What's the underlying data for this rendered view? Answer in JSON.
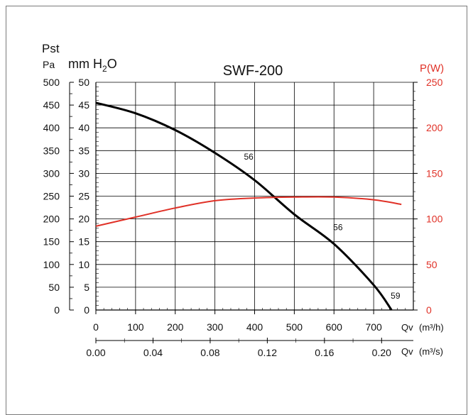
{
  "chart_data": {
    "type": "line",
    "title": "SWF-200",
    "left_axis": {
      "label_top": "Pst",
      "unit_pa": "Pa",
      "unit_mm_prefix": "mm H",
      "unit_mm_sub": "2",
      "unit_mm_suffix": "O",
      "pa_ticks": [
        0,
        50,
        100,
        150,
        200,
        250,
        300,
        350,
        400,
        450,
        500
      ],
      "mm_ticks": [
        0,
        5,
        10,
        15,
        20,
        25,
        30,
        35,
        40,
        45,
        50
      ],
      "ylim": [
        0,
        500
      ]
    },
    "right_axis": {
      "label": "P(W)",
      "ticks": [
        0,
        50,
        100,
        150,
        200,
        250
      ],
      "ylim": [
        0,
        250
      ]
    },
    "x_axis_primary": {
      "label_q": "Qv",
      "unit": "(m³/h)",
      "ticks": [
        0,
        100,
        200,
        300,
        400,
        500,
        600,
        700
      ],
      "xlim": [
        0,
        800
      ]
    },
    "x_axis_secondary": {
      "label_q": "Qv",
      "unit": "(m³/s)",
      "ticks": [
        "0.00",
        "0.04",
        "0.08",
        "0.12",
        "0.16",
        "0.20"
      ]
    },
    "grid": true,
    "series": [
      {
        "axis": "left",
        "color": "#000000",
        "points": [
          [
            0,
            455
          ],
          [
            100,
            432
          ],
          [
            200,
            395
          ],
          [
            300,
            345
          ],
          [
            400,
            285
          ],
          [
            500,
            210
          ],
          [
            600,
            145
          ],
          [
            700,
            55
          ],
          [
            745,
            0
          ]
        ]
      },
      {
        "axis": "right",
        "color": "#e03127",
        "points": [
          [
            0,
            92
          ],
          [
            100,
            102
          ],
          [
            200,
            112
          ],
          [
            300,
            120
          ],
          [
            400,
            123
          ],
          [
            500,
            124
          ],
          [
            600,
            124
          ],
          [
            700,
            121
          ],
          [
            770,
            116
          ]
        ]
      }
    ],
    "annotations": [
      {
        "text": "56",
        "x": 385,
        "y": 330
      },
      {
        "text": "56",
        "x": 610,
        "y": 175
      },
      {
        "text": "59",
        "x": 755,
        "y": 25
      }
    ]
  }
}
